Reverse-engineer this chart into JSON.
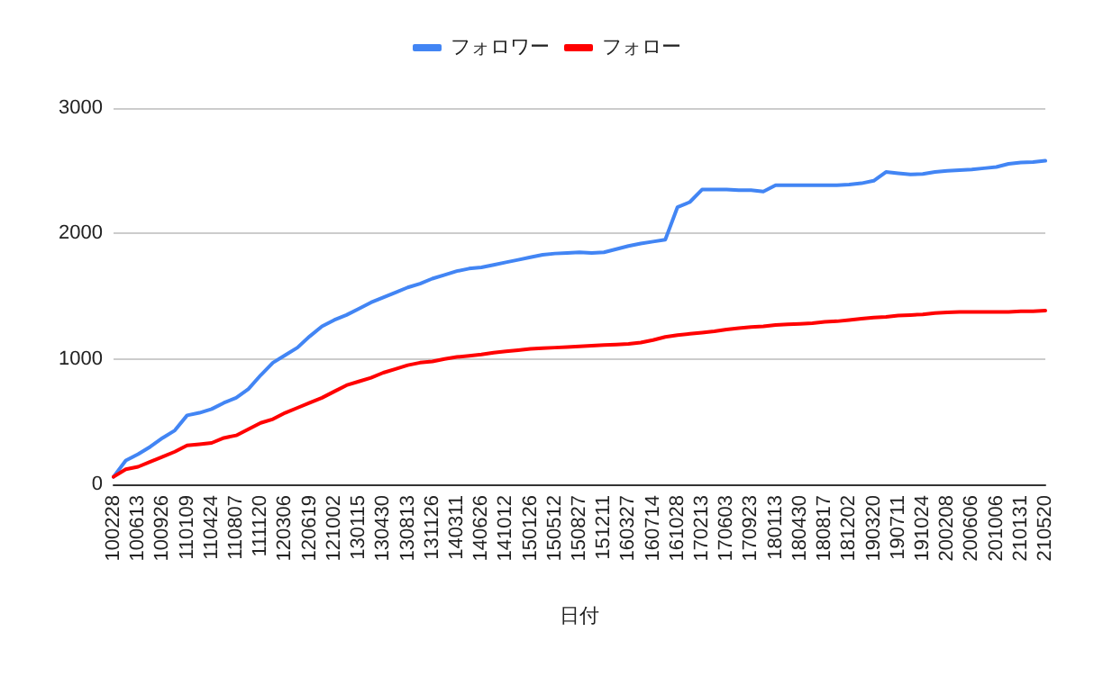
{
  "chart_data": {
    "type": "line",
    "xlabel": "日付",
    "categories": [
      "100228",
      null,
      "100613",
      null,
      "100926",
      null,
      "110109",
      null,
      "110424",
      null,
      "110807",
      null,
      "111120",
      null,
      "120306",
      null,
      "120619",
      null,
      "121002",
      null,
      "130115",
      null,
      "130430",
      null,
      "130813",
      null,
      "131126",
      null,
      "140311",
      null,
      "140626",
      null,
      "141012",
      null,
      "150126",
      null,
      "150512",
      null,
      "150827",
      null,
      "151211",
      null,
      "160327",
      null,
      "160714",
      null,
      "161028",
      null,
      "170213",
      null,
      "170603",
      null,
      "170923",
      null,
      "180113",
      null,
      "180430",
      null,
      "180817",
      null,
      "181202",
      null,
      "190320",
      null,
      "190711",
      null,
      "191024",
      null,
      "200208",
      null,
      "200606",
      null,
      "201006",
      null,
      "210131",
      null,
      "210520"
    ],
    "series": [
      {
        "name": "フォロワー",
        "color": "#4285f4",
        "values": [
          60,
          190,
          240,
          300,
          370,
          430,
          550,
          570,
          600,
          650,
          690,
          760,
          870,
          970,
          1030,
          1090,
          1180,
          1260,
          1310,
          1350,
          1400,
          1450,
          1490,
          1530,
          1570,
          1600,
          1640,
          1670,
          1700,
          1720,
          1730,
          1750,
          1770,
          1790,
          1810,
          1830,
          1840,
          1845,
          1850,
          1845,
          1850,
          1875,
          1900,
          1920,
          1935,
          1950,
          2210,
          2250,
          2350,
          2350,
          2350,
          2345,
          2345,
          2335,
          2385,
          2385,
          2385,
          2385,
          2385,
          2385,
          2390,
          2400,
          2420,
          2490,
          2480,
          2470,
          2475,
          2490,
          2500,
          2505,
          2510,
          2520,
          2530,
          2555,
          2565,
          2570,
          2580
        ]
      },
      {
        "name": "フォロー",
        "color": "#ff0000",
        "values": [
          60,
          120,
          140,
          180,
          220,
          260,
          310,
          320,
          330,
          370,
          390,
          440,
          490,
          520,
          570,
          610,
          650,
          690,
          740,
          790,
          820,
          850,
          890,
          920,
          950,
          970,
          980,
          1000,
          1015,
          1025,
          1035,
          1050,
          1060,
          1070,
          1080,
          1085,
          1090,
          1095,
          1100,
          1105,
          1110,
          1115,
          1120,
          1130,
          1150,
          1175,
          1190,
          1200,
          1210,
          1220,
          1235,
          1245,
          1255,
          1260,
          1270,
          1275,
          1280,
          1285,
          1295,
          1300,
          1310,
          1320,
          1330,
          1335,
          1345,
          1350,
          1355,
          1365,
          1370,
          1375,
          1375,
          1375,
          1375,
          1375,
          1380,
          1380,
          1385
        ]
      }
    ],
    "ylim": [
      0,
      3000
    ],
    "yticks": [
      0,
      1000,
      2000,
      3000
    ],
    "grid": "y",
    "legend": "top",
    "marker": "none",
    "line_style": "solid"
  }
}
